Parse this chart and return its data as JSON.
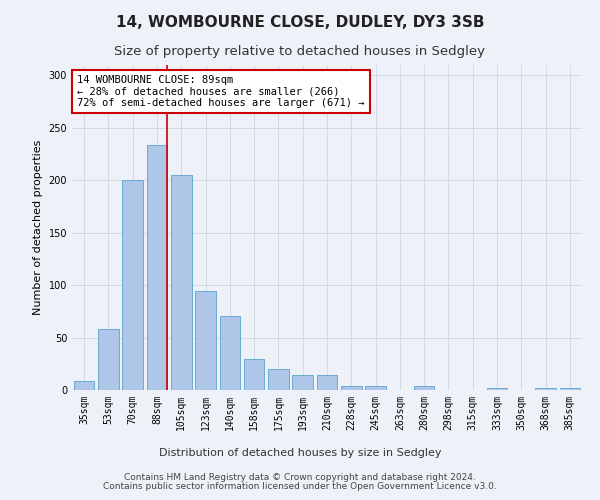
{
  "title": "14, WOMBOURNE CLOSE, DUDLEY, DY3 3SB",
  "subtitle": "Size of property relative to detached houses in Sedgley",
  "xlabel": "Distribution of detached houses by size in Sedgley",
  "ylabel": "Number of detached properties",
  "categories": [
    "35sqm",
    "53sqm",
    "70sqm",
    "88sqm",
    "105sqm",
    "123sqm",
    "140sqm",
    "158sqm",
    "175sqm",
    "193sqm",
    "210sqm",
    "228sqm",
    "245sqm",
    "263sqm",
    "280sqm",
    "298sqm",
    "315sqm",
    "333sqm",
    "350sqm",
    "368sqm",
    "385sqm"
  ],
  "values": [
    9,
    58,
    200,
    234,
    205,
    94,
    71,
    30,
    20,
    14,
    14,
    4,
    4,
    0,
    4,
    0,
    0,
    2,
    0,
    2,
    2
  ],
  "bar_color": "#aec6e8",
  "bar_edgecolor": "#6aaad4",
  "annotation_text": "14 WOMBOURNE CLOSE: 89sqm\n← 28% of detached houses are smaller (266)\n72% of semi-detached houses are larger (671) →",
  "annotation_box_color": "#ffffff",
  "annotation_box_edgecolor": "#cc0000",
  "vline_color": "#cc0000",
  "footer_line1": "Contains HM Land Registry data © Crown copyright and database right 2024.",
  "footer_line2": "Contains public sector information licensed under the Open Government Licence v3.0.",
  "background_color": "#eef2f8",
  "ylim": [
    0,
    310
  ],
  "title_fontsize": 11,
  "subtitle_fontsize": 9.5,
  "axis_label_fontsize": 8,
  "tick_fontsize": 7,
  "footer_fontsize": 6.5
}
